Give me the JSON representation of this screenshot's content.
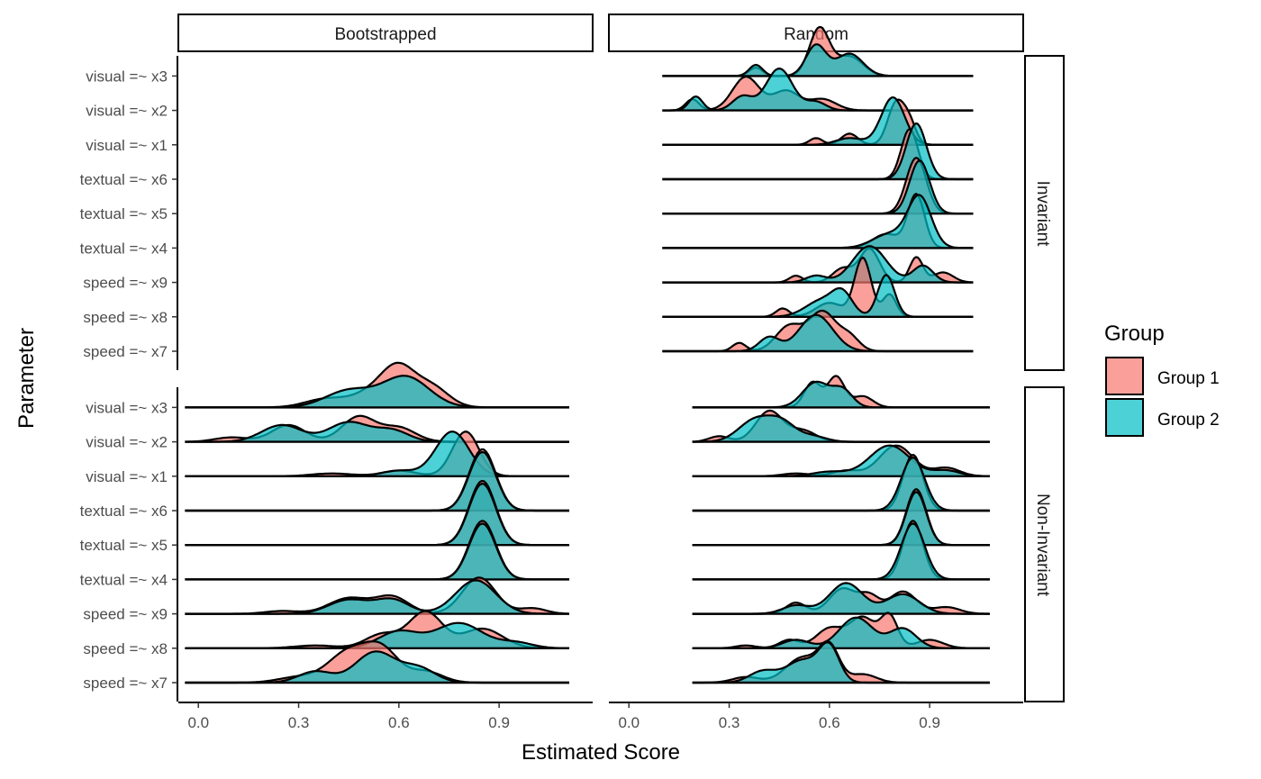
{
  "chart_data": {
    "type": "ridgeline",
    "xlabel": "Estimated Score",
    "ylabel": "Parameter",
    "xlim": [
      -0.06,
      1.18
    ],
    "x_ticks": [
      "0.0",
      "0.3",
      "0.6",
      "0.9"
    ],
    "x_tick_values": [
      0.0,
      0.3,
      0.6,
      0.9
    ],
    "columns": [
      "Bootstrapped",
      "Random"
    ],
    "rows": [
      "Invariant",
      "Non-Invariant"
    ],
    "parameters": [
      "speed =~ x7",
      "speed =~ x8",
      "speed =~ x9",
      "textual =~ x4",
      "textual =~ x5",
      "textual =~ x6",
      "visual =~ x1",
      "visual =~ x2",
      "visual =~ x3"
    ],
    "legend": {
      "title": "Group",
      "items": [
        {
          "label": "Group 1",
          "color": "#F8766D"
        },
        {
          "label": "Group 2",
          "color": "#00BFC4"
        }
      ]
    },
    "grid": false,
    "panels": [
      {
        "column": "Random",
        "row": "Invariant",
        "range": [
          0.1,
          1.03
        ],
        "ridges": {
          "speed =~ x7": {
            "g1": [
              [
                0.33,
                0.15,
                0.02
              ],
              [
                0.48,
                0.45,
                0.04
              ],
              [
                0.58,
                0.7,
                0.04
              ],
              [
                0.66,
                0.25,
                0.03
              ]
            ],
            "g2": [
              [
                0.42,
                0.25,
                0.03
              ],
              [
                0.56,
                0.65,
                0.05
              ]
            ]
          },
          "speed =~ x8": {
            "g1": [
              [
                0.46,
                0.15,
                0.02
              ],
              [
                0.6,
                0.25,
                0.04
              ],
              [
                0.7,
                1.05,
                0.025
              ],
              [
                0.78,
                0.4,
                0.02
              ]
            ],
            "g2": [
              [
                0.58,
                0.3,
                0.05
              ],
              [
                0.64,
                0.35,
                0.03
              ],
              [
                0.77,
                0.75,
                0.025
              ]
            ]
          },
          "speed =~ x9": {
            "g1": [
              [
                0.5,
                0.12,
                0.02
              ],
              [
                0.64,
                0.25,
                0.03
              ],
              [
                0.72,
                0.6,
                0.03
              ],
              [
                0.86,
                0.45,
                0.02
              ],
              [
                0.94,
                0.18,
                0.03
              ]
            ],
            "g2": [
              [
                0.56,
                0.12,
                0.03
              ],
              [
                0.72,
                0.65,
                0.05
              ],
              [
                0.88,
                0.3,
                0.03
              ]
            ]
          },
          "textual =~ x4": {
            "g1": [
              [
                0.77,
                0.25,
                0.04
              ],
              [
                0.86,
                0.95,
                0.025
              ]
            ],
            "g2": [
              [
                0.78,
                0.25,
                0.05
              ],
              [
                0.87,
                0.9,
                0.035
              ]
            ]
          },
          "textual =~ x5": {
            "g1": [
              [
                0.86,
                1.0,
                0.03
              ]
            ],
            "g2": [
              [
                0.87,
                0.95,
                0.03
              ]
            ]
          },
          "textual =~ x6": {
            "g1": [
              [
                0.84,
                0.9,
                0.025
              ]
            ],
            "g2": [
              [
                0.86,
                1.0,
                0.03
              ]
            ]
          },
          "visual =~ x1": {
            "g1": [
              [
                0.56,
                0.12,
                0.02
              ],
              [
                0.66,
                0.2,
                0.025
              ],
              [
                0.8,
                0.75,
                0.025
              ],
              [
                0.84,
                0.35,
                0.02
              ]
            ],
            "g2": [
              [
                0.66,
                0.12,
                0.04
              ],
              [
                0.79,
                0.85,
                0.035
              ]
            ]
          },
          "visual =~ x2": {
            "g1": [
              [
                0.19,
                0.2,
                0.02
              ],
              [
                0.35,
                0.6,
                0.04
              ],
              [
                0.47,
                0.35,
                0.04
              ],
              [
                0.58,
                0.2,
                0.04
              ]
            ],
            "g2": [
              [
                0.2,
                0.25,
                0.02
              ],
              [
                0.34,
                0.25,
                0.03
              ],
              [
                0.45,
                0.75,
                0.04
              ],
              [
                0.56,
                0.15,
                0.03
              ]
            ]
          },
          "visual =~ x3": {
            "g1": [
              [
                0.38,
                0.15,
                0.02
              ],
              [
                0.57,
                0.85,
                0.03
              ],
              [
                0.66,
                0.35,
                0.04
              ]
            ],
            "g2": [
              [
                0.38,
                0.2,
                0.02
              ],
              [
                0.56,
                0.55,
                0.03
              ],
              [
                0.66,
                0.4,
                0.04
              ]
            ]
          }
        }
      },
      {
        "column": "Bootstrapped",
        "row": "Non-Invariant",
        "range": [
          -0.04,
          1.11
        ],
        "ridges": {
          "speed =~ x7": {
            "g1": [
              [
                0.3,
                0.1,
                0.06
              ],
              [
                0.45,
                0.55,
                0.06
              ],
              [
                0.55,
                0.55,
                0.05
              ],
              [
                0.68,
                0.2,
                0.05
              ]
            ],
            "g2": [
              [
                0.35,
                0.2,
                0.05
              ],
              [
                0.53,
                0.55,
                0.06
              ],
              [
                0.66,
                0.25,
                0.05
              ]
            ]
          },
          "speed =~ x8": {
            "g1": [
              [
                0.35,
                0.05,
                0.06
              ],
              [
                0.55,
                0.25,
                0.05
              ],
              [
                0.68,
                0.65,
                0.05
              ],
              [
                0.85,
                0.35,
                0.06
              ]
            ],
            "g2": [
              [
                0.6,
                0.3,
                0.06
              ],
              [
                0.78,
                0.45,
                0.07
              ],
              [
                0.95,
                0.1,
                0.05
              ]
            ]
          },
          "speed =~ x9": {
            "g1": [
              [
                0.25,
                0.05,
                0.05
              ],
              [
                0.45,
                0.28,
                0.06
              ],
              [
                0.58,
                0.3,
                0.05
              ],
              [
                0.84,
                0.65,
                0.05
              ],
              [
                1.0,
                0.1,
                0.04
              ]
            ],
            "g2": [
              [
                0.45,
                0.25,
                0.06
              ],
              [
                0.58,
                0.25,
                0.05
              ],
              [
                0.83,
                0.6,
                0.06
              ]
            ]
          },
          "textual =~ x4": {
            "g1": [
              [
                0.85,
                1.05,
                0.04
              ]
            ],
            "g2": [
              [
                0.85,
                1.0,
                0.04
              ]
            ]
          },
          "textual =~ x5": {
            "g1": [
              [
                0.85,
                1.15,
                0.04
              ]
            ],
            "g2": [
              [
                0.85,
                1.1,
                0.04
              ]
            ]
          },
          "textual =~ x6": {
            "g1": [
              [
                0.85,
                1.1,
                0.04
              ]
            ],
            "g2": [
              [
                0.85,
                1.05,
                0.04
              ]
            ]
          },
          "visual =~ x1": {
            "g1": [
              [
                0.4,
                0.05,
                0.06
              ],
              [
                0.6,
                0.1,
                0.05
              ],
              [
                0.8,
                0.8,
                0.04
              ]
            ],
            "g2": [
              [
                0.6,
                0.1,
                0.05
              ],
              [
                0.76,
                0.8,
                0.05
              ]
            ]
          },
          "visual =~ x2": {
            "g1": [
              [
                0.1,
                0.08,
                0.05
              ],
              [
                0.27,
                0.3,
                0.05
              ],
              [
                0.48,
                0.45,
                0.05
              ],
              [
                0.6,
                0.25,
                0.05
              ]
            ],
            "g2": [
              [
                0.25,
                0.3,
                0.06
              ],
              [
                0.45,
                0.35,
                0.06
              ],
              [
                0.58,
                0.2,
                0.05
              ]
            ]
          },
          "visual =~ x3": {
            "g1": [
              [
                0.38,
                0.15,
                0.06
              ],
              [
                0.52,
                0.25,
                0.06
              ],
              [
                0.6,
                0.65,
                0.05
              ],
              [
                0.7,
                0.35,
                0.05
              ]
            ],
            "g2": [
              [
                0.45,
                0.3,
                0.07
              ],
              [
                0.62,
                0.55,
                0.07
              ]
            ]
          }
        }
      },
      {
        "column": "Random",
        "row": "Non-Invariant",
        "range": [
          0.19,
          1.08
        ],
        "ridges": {
          "speed =~ x7": {
            "g1": [
              [
                0.35,
                0.1,
                0.04
              ],
              [
                0.52,
                0.45,
                0.05
              ],
              [
                0.6,
                0.6,
                0.03
              ],
              [
                0.7,
                0.15,
                0.04
              ]
            ],
            "g2": [
              [
                0.4,
                0.2,
                0.04
              ],
              [
                0.52,
                0.4,
                0.05
              ],
              [
                0.6,
                0.6,
                0.03
              ]
            ]
          },
          "speed =~ x8": {
            "g1": [
              [
                0.35,
                0.05,
                0.03
              ],
              [
                0.48,
                0.15,
                0.03
              ],
              [
                0.6,
                0.35,
                0.04
              ],
              [
                0.7,
                0.55,
                0.04
              ],
              [
                0.78,
                0.55,
                0.025
              ],
              [
                0.9,
                0.15,
                0.04
              ]
            ],
            "g2": [
              [
                0.5,
                0.15,
                0.04
              ],
              [
                0.68,
                0.55,
                0.05
              ],
              [
                0.82,
                0.35,
                0.04
              ]
            ]
          },
          "speed =~ x9": {
            "g1": [
              [
                0.5,
                0.2,
                0.03
              ],
              [
                0.64,
                0.45,
                0.04
              ],
              [
                0.72,
                0.3,
                0.03
              ],
              [
                0.82,
                0.4,
                0.04
              ],
              [
                0.95,
                0.12,
                0.04
              ]
            ],
            "g2": [
              [
                0.5,
                0.15,
                0.04
              ],
              [
                0.65,
                0.55,
                0.05
              ],
              [
                0.82,
                0.35,
                0.05
              ]
            ]
          },
          "textual =~ x4": {
            "g1": [
              [
                0.85,
                1.05,
                0.03
              ]
            ],
            "g2": [
              [
                0.85,
                1.0,
                0.035
              ]
            ]
          },
          "textual =~ x5": {
            "g1": [
              [
                0.86,
                1.0,
                0.03
              ]
            ],
            "g2": [
              [
                0.86,
                0.95,
                0.03
              ]
            ]
          },
          "textual =~ x6": {
            "g1": [
              [
                0.85,
                1.0,
                0.03
              ]
            ],
            "g2": [
              [
                0.85,
                0.95,
                0.035
              ]
            ]
          },
          "visual =~ x1": {
            "g1": [
              [
                0.5,
                0.05,
                0.04
              ],
              [
                0.65,
                0.1,
                0.04
              ],
              [
                0.8,
                0.55,
                0.05
              ],
              [
                0.95,
                0.15,
                0.04
              ]
            ],
            "g2": [
              [
                0.6,
                0.08,
                0.05
              ],
              [
                0.78,
                0.55,
                0.06
              ],
              [
                0.95,
                0.1,
                0.04
              ]
            ]
          },
          "visual =~ x2": {
            "g1": [
              [
                0.27,
                0.1,
                0.03
              ],
              [
                0.42,
                0.55,
                0.04
              ],
              [
                0.52,
                0.2,
                0.04
              ]
            ],
            "g2": [
              [
                0.38,
                0.4,
                0.05
              ],
              [
                0.46,
                0.3,
                0.04
              ],
              [
                0.55,
                0.1,
                0.04
              ]
            ]
          },
          "visual =~ x3": {
            "g1": [
              [
                0.55,
                0.45,
                0.025
              ],
              [
                0.62,
                0.55,
                0.025
              ],
              [
                0.7,
                0.2,
                0.03
              ]
            ],
            "g2": [
              [
                0.56,
                0.45,
                0.04
              ],
              [
                0.64,
                0.3,
                0.03
              ]
            ]
          }
        }
      }
    ]
  }
}
